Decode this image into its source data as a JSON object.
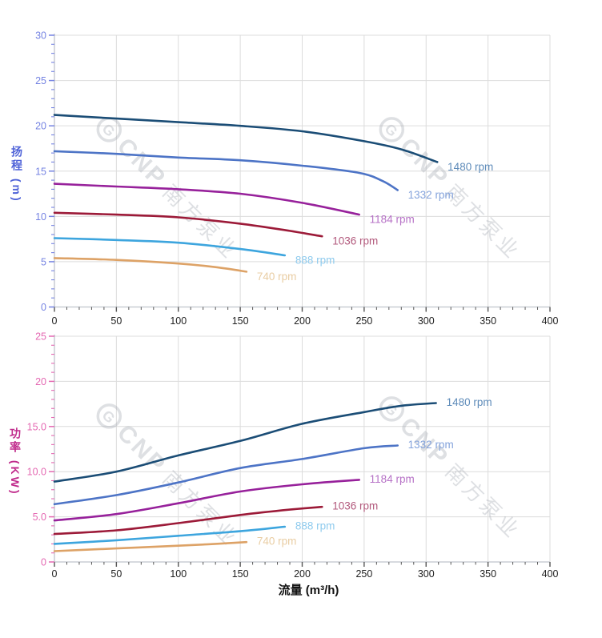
{
  "watermark": {
    "logo_letter": "G",
    "brand": "CNP",
    "company": "南方泵业",
    "color": "#9ba1ab"
  },
  "chart_data": [
    {
      "type": "line",
      "id": "head-curves",
      "title": "",
      "xlabel": "",
      "ylabel": "扬程 (m)",
      "xlim": [
        0,
        400
      ],
      "ylim": [
        0,
        30
      ],
      "grid": true,
      "legend_position": "inline-right-of-curve-end",
      "tick_color": "#7583e2",
      "axis_title_color": "#4f63d8",
      "x_tick_color": "#222222",
      "x_ticks": {
        "values": [
          0,
          50,
          100,
          150,
          200,
          250,
          300,
          350,
          400
        ],
        "labels": [
          "0",
          "50",
          "100",
          "150",
          "200",
          "250",
          "300",
          "350",
          "400"
        ]
      },
      "y_ticks": {
        "values": [
          0,
          5,
          10,
          15,
          20,
          25,
          30
        ],
        "labels": [
          "0",
          "5",
          "10",
          "15",
          "20",
          "25",
          "30"
        ]
      },
      "x_minor_step": 10,
      "y_minor_step": 1,
      "series": [
        {
          "name": "1480 rpm",
          "color": "#1b4d76",
          "label_color": "#5f8cba",
          "points": [
            [
              0,
              21.2
            ],
            [
              50,
              20.8
            ],
            [
              100,
              20.4
            ],
            [
              150,
              20.0
            ],
            [
              200,
              19.4
            ],
            [
              250,
              18.3
            ],
            [
              280,
              17.4
            ],
            [
              309,
              16.0
            ]
          ]
        },
        {
          "name": "1332 rpm",
          "color": "#4d74c6",
          "label_color": "#84a3dc",
          "points": [
            [
              0,
              17.2
            ],
            [
              50,
              16.9
            ],
            [
              100,
              16.5
            ],
            [
              150,
              16.2
            ],
            [
              200,
              15.6
            ],
            [
              246,
              14.8
            ],
            [
              265,
              13.9
            ],
            [
              277,
              12.9
            ]
          ]
        },
        {
          "name": "1184 rpm",
          "color": "#97219b",
          "label_color": "#b671c6",
          "points": [
            [
              0,
              13.6
            ],
            [
              50,
              13.3
            ],
            [
              100,
              13.0
            ],
            [
              150,
              12.5
            ],
            [
              200,
              11.5
            ],
            [
              246,
              10.2
            ]
          ]
        },
        {
          "name": "1036 rpm",
          "color": "#9c1a38",
          "label_color": "#b2597c",
          "points": [
            [
              0,
              10.4
            ],
            [
              50,
              10.2
            ],
            [
              100,
              9.9
            ],
            [
              150,
              9.2
            ],
            [
              190,
              8.4
            ],
            [
              216,
              7.8
            ]
          ]
        },
        {
          "name": "888 rpm",
          "color": "#3da5de",
          "label_color": "#8fcbee",
          "points": [
            [
              0,
              7.6
            ],
            [
              50,
              7.4
            ],
            [
              100,
              7.1
            ],
            [
              150,
              6.4
            ],
            [
              186,
              5.7
            ]
          ]
        },
        {
          "name": "740 rpm",
          "color": "#dda266",
          "label_color": "#e9cda3",
          "points": [
            [
              0,
              5.4
            ],
            [
              50,
              5.2
            ],
            [
              100,
              4.8
            ],
            [
              130,
              4.4
            ],
            [
              155,
              3.9
            ]
          ]
        }
      ]
    },
    {
      "type": "line",
      "id": "power-curves",
      "title": "",
      "xlabel": "流量 (m³/h)",
      "ylabel": "功率 (KW)",
      "xlim": [
        0,
        400
      ],
      "ylim": [
        0,
        25
      ],
      "grid": true,
      "legend_position": "inline-right-of-curve-end",
      "tick_color": "#e468b2",
      "axis_title_color": "#c02c8c",
      "x_tick_color": "#222222",
      "x_ticks": {
        "values": [
          0,
          50,
          100,
          150,
          200,
          250,
          300,
          350,
          400
        ],
        "labels": [
          "0",
          "50",
          "100",
          "150",
          "200",
          "250",
          "300",
          "350",
          "400"
        ]
      },
      "y_ticks": {
        "values": [
          0,
          5,
          10,
          15,
          20,
          25
        ],
        "labels": [
          "0",
          "5.0",
          "10.0",
          "15.0",
          "20",
          "25"
        ]
      },
      "x_minor_step": 10,
      "y_minor_step": 1,
      "series": [
        {
          "name": "1480 rpm",
          "color": "#1b4d76",
          "label_color": "#5f8cba",
          "points": [
            [
              0,
              8.9
            ],
            [
              50,
              10.0
            ],
            [
              100,
              11.8
            ],
            [
              150,
              13.4
            ],
            [
              200,
              15.3
            ],
            [
              250,
              16.6
            ],
            [
              280,
              17.3
            ],
            [
              308,
              17.6
            ]
          ]
        },
        {
          "name": "1332 rpm",
          "color": "#4d74c6",
          "label_color": "#84a3dc",
          "points": [
            [
              0,
              6.4
            ],
            [
              50,
              7.4
            ],
            [
              100,
              8.8
            ],
            [
              150,
              10.4
            ],
            [
              200,
              11.4
            ],
            [
              250,
              12.6
            ],
            [
              277,
              12.9
            ]
          ]
        },
        {
          "name": "1184 rpm",
          "color": "#97219b",
          "label_color": "#b671c6",
          "points": [
            [
              0,
              4.6
            ],
            [
              50,
              5.3
            ],
            [
              100,
              6.5
            ],
            [
              150,
              7.8
            ],
            [
              200,
              8.6
            ],
            [
              246,
              9.1
            ]
          ]
        },
        {
          "name": "1036 rpm",
          "color": "#9c1a38",
          "label_color": "#b2597c",
          "points": [
            [
              0,
              3.1
            ],
            [
              50,
              3.5
            ],
            [
              100,
              4.3
            ],
            [
              150,
              5.2
            ],
            [
              190,
              5.8
            ],
            [
              216,
              6.1
            ]
          ]
        },
        {
          "name": "888 rpm",
          "color": "#3da5de",
          "label_color": "#8fcbee",
          "points": [
            [
              0,
              2.0
            ],
            [
              50,
              2.4
            ],
            [
              100,
              2.9
            ],
            [
              150,
              3.4
            ],
            [
              186,
              3.9
            ]
          ]
        },
        {
          "name": "740 rpm",
          "color": "#dda266",
          "label_color": "#e9cda3",
          "points": [
            [
              0,
              1.2
            ],
            [
              50,
              1.5
            ],
            [
              100,
              1.8
            ],
            [
              130,
              2.0
            ],
            [
              155,
              2.2
            ]
          ]
        }
      ]
    }
  ],
  "style_colors": {
    "gridline": "#dcdcdc",
    "axis_line": "#bfc3cc",
    "x_tick_mark": "#555555"
  }
}
